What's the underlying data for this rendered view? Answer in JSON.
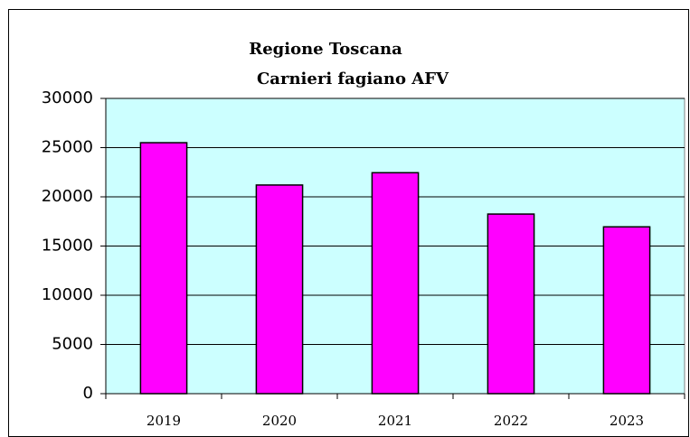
{
  "chart_data": {
    "type": "bar",
    "title": [
      "Regione Toscana",
      "Carnieri fagiano AFV"
    ],
    "categories": [
      "2019",
      "2020",
      "2021",
      "2022",
      "2023"
    ],
    "values": [
      25500,
      21200,
      22450,
      18250,
      16950
    ],
    "color": "#ff00ff",
    "background": "#ccffff",
    "ylim": [
      0,
      30000
    ],
    "yticks": [
      0,
      5000,
      10000,
      15000,
      20000,
      25000,
      30000
    ],
    "grid": true
  }
}
